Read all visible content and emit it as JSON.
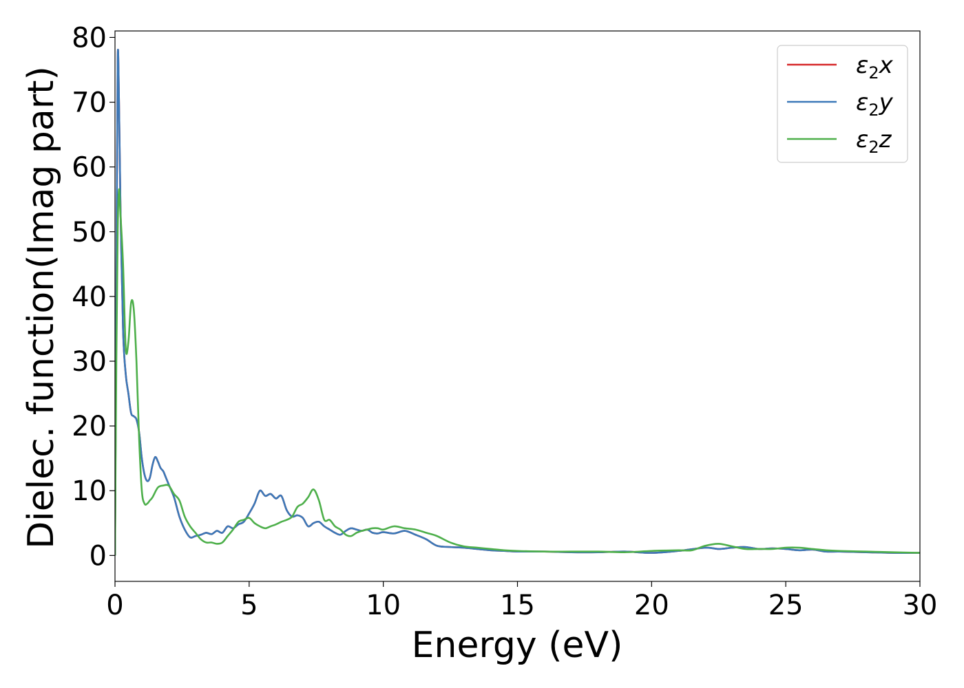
{
  "chart_data": {
    "type": "line",
    "title": "",
    "xlabel": "Energy (eV)",
    "ylabel": "Dielec. function(Imag part)",
    "xlim": [
      0,
      30
    ],
    "ylim": [
      -4,
      81
    ],
    "xticks": [
      0,
      5,
      10,
      15,
      20,
      25,
      30
    ],
    "xtick_labels": [
      "0",
      "5",
      "10",
      "15",
      "20",
      "25",
      "30"
    ],
    "yticks": [
      0,
      10,
      20,
      30,
      40,
      50,
      60,
      70,
      80
    ],
    "ytick_labels": [
      "0",
      "10",
      "20",
      "30",
      "40",
      "50",
      "60",
      "70",
      "80"
    ],
    "grid": false,
    "legend_position": "top-right",
    "series": [
      {
        "name": "ε₂x",
        "legend_base": "ε",
        "legend_sub": "2",
        "legend_var": "x",
        "color": "#d62728",
        "x": [
          0,
          0.05,
          0.1,
          0.15,
          0.2,
          0.3,
          0.4,
          0.5,
          0.6,
          0.7,
          0.8,
          0.9,
          1.0,
          1.1,
          1.2,
          1.3,
          1.4,
          1.5,
          1.6,
          1.7,
          1.8,
          1.9,
          2.0,
          2.2,
          2.4,
          2.6,
          2.8,
          3.0,
          3.2,
          3.4,
          3.6,
          3.8,
          4.0,
          4.2,
          4.4,
          4.6,
          4.8,
          5.0,
          5.2,
          5.4,
          5.6,
          5.8,
          6.0,
          6.2,
          6.4,
          6.6,
          6.8,
          7.0,
          7.2,
          7.4,
          7.6,
          7.8,
          8.0,
          8.2,
          8.4,
          8.6,
          8.8,
          9.0,
          9.2,
          9.4,
          9.6,
          9.8,
          10.0,
          10.4,
          10.8,
          11.2,
          11.6,
          12.0,
          12.5,
          13.0,
          13.5,
          14.0,
          14.5,
          15.0,
          16.0,
          17.0,
          18.0,
          19.0,
          20.0,
          21.0,
          22.0,
          22.5,
          23.0,
          23.5,
          24.0,
          24.5,
          25.0,
          25.5,
          26.0,
          26.5,
          27.0,
          28.0,
          29.0,
          30.0
        ],
        "y": [
          0,
          40,
          76.5,
          70,
          55,
          35,
          28,
          25,
          22,
          21.5,
          21,
          19,
          15,
          12.5,
          11.5,
          12,
          14,
          15.2,
          14.5,
          13.5,
          13,
          12,
          11,
          9,
          6,
          4,
          2.8,
          3.0,
          3.2,
          3.5,
          3.3,
          3.8,
          3.5,
          4.5,
          4.2,
          4.8,
          5.2,
          6.5,
          8,
          10,
          9.2,
          9.5,
          8.8,
          9.2,
          7,
          6,
          6.2,
          5.8,
          4.5,
          5,
          5.2,
          4.5,
          4,
          3.5,
          3.2,
          3.8,
          4.2,
          4,
          3.8,
          4.0,
          3.5,
          3.4,
          3.6,
          3.4,
          3.8,
          3.2,
          2.5,
          1.5,
          1.3,
          1.2,
          1.0,
          0.8,
          0.7,
          0.6,
          0.6,
          0.5,
          0.5,
          0.6,
          0.4,
          0.7,
          1.2,
          1.0,
          1.2,
          1.3,
          1.0,
          1.1,
          1.0,
          0.8,
          0.9,
          0.6,
          0.6,
          0.5,
          0.4,
          0.4
        ]
      },
      {
        "name": "ε₂y",
        "legend_base": "ε",
        "legend_sub": "2",
        "legend_var": "y",
        "color": "#3a78b8",
        "x": [
          0,
          0.05,
          0.1,
          0.15,
          0.2,
          0.3,
          0.4,
          0.5,
          0.6,
          0.7,
          0.8,
          0.9,
          1.0,
          1.1,
          1.2,
          1.3,
          1.4,
          1.5,
          1.6,
          1.7,
          1.8,
          1.9,
          2.0,
          2.2,
          2.4,
          2.6,
          2.8,
          3.0,
          3.2,
          3.4,
          3.6,
          3.8,
          4.0,
          4.2,
          4.4,
          4.6,
          4.8,
          5.0,
          5.2,
          5.4,
          5.6,
          5.8,
          6.0,
          6.2,
          6.4,
          6.6,
          6.8,
          7.0,
          7.2,
          7.4,
          7.6,
          7.8,
          8.0,
          8.2,
          8.4,
          8.6,
          8.8,
          9.0,
          9.2,
          9.4,
          9.6,
          9.8,
          10.0,
          10.4,
          10.8,
          11.2,
          11.6,
          12.0,
          12.5,
          13.0,
          13.5,
          14.0,
          14.5,
          15.0,
          16.0,
          17.0,
          18.0,
          19.0,
          20.0,
          21.0,
          22.0,
          22.5,
          23.0,
          23.5,
          24.0,
          24.5,
          25.0,
          25.5,
          26.0,
          26.5,
          27.0,
          28.0,
          29.0,
          30.0
        ],
        "y": [
          0,
          40,
          76.5,
          70,
          55,
          35,
          28,
          25,
          22,
          21.5,
          21,
          19,
          15,
          12.5,
          11.5,
          12,
          14,
          15.2,
          14.5,
          13.5,
          13,
          12,
          11,
          9,
          6,
          4,
          2.8,
          3.0,
          3.2,
          3.5,
          3.3,
          3.8,
          3.5,
          4.5,
          4.2,
          4.8,
          5.2,
          6.5,
          8,
          10,
          9.2,
          9.5,
          8.8,
          9.2,
          7,
          6,
          6.2,
          5.8,
          4.5,
          5,
          5.2,
          4.5,
          4,
          3.5,
          3.2,
          3.8,
          4.2,
          4,
          3.8,
          4.0,
          3.5,
          3.4,
          3.6,
          3.4,
          3.8,
          3.2,
          2.5,
          1.5,
          1.3,
          1.2,
          1.0,
          0.8,
          0.7,
          0.6,
          0.6,
          0.5,
          0.5,
          0.6,
          0.4,
          0.7,
          1.2,
          1.0,
          1.2,
          1.3,
          1.0,
          1.1,
          1.0,
          0.8,
          0.9,
          0.6,
          0.6,
          0.5,
          0.4,
          0.4
        ]
      },
      {
        "name": "ε₂z",
        "legend_base": "ε",
        "legend_sub": "2",
        "legend_var": "z",
        "color": "#4daf4a",
        "x": [
          0,
          0.05,
          0.1,
          0.15,
          0.2,
          0.3,
          0.4,
          0.5,
          0.6,
          0.7,
          0.8,
          0.9,
          1.0,
          1.1,
          1.2,
          1.3,
          1.4,
          1.6,
          1.8,
          2.0,
          2.2,
          2.4,
          2.6,
          2.8,
          3.0,
          3.2,
          3.4,
          3.6,
          3.8,
          4.0,
          4.2,
          4.4,
          4.6,
          4.8,
          5.0,
          5.2,
          5.4,
          5.6,
          5.8,
          6.0,
          6.2,
          6.4,
          6.6,
          6.8,
          7.0,
          7.2,
          7.4,
          7.6,
          7.8,
          8.0,
          8.2,
          8.4,
          8.6,
          8.8,
          9.0,
          9.2,
          9.4,
          9.6,
          9.8,
          10.0,
          10.4,
          10.8,
          11.2,
          11.6,
          12.0,
          12.5,
          13.0,
          13.5,
          14.0,
          14.5,
          15.0,
          16.0,
          17.0,
          18.0,
          19.0,
          20.0,
          21.0,
          21.5,
          22.0,
          22.5,
          23.0,
          23.5,
          24.0,
          24.5,
          25.0,
          25.5,
          26.0,
          26.5,
          27.0,
          28.0,
          29.0,
          30.0
        ],
        "y": [
          0,
          30,
          50,
          56.5,
          53,
          45,
          32,
          33,
          39,
          38,
          30,
          18,
          10,
          8,
          8,
          8.5,
          9,
          10.5,
          10.8,
          10.8,
          9.5,
          8.5,
          6,
          4.5,
          3.5,
          2.5,
          2,
          2,
          1.8,
          2,
          3,
          4,
          5.2,
          5.5,
          5.8,
          5,
          4.5,
          4.2,
          4.5,
          4.8,
          5.2,
          5.5,
          6,
          7.5,
          8,
          9,
          10.2,
          8.5,
          5.5,
          5.5,
          4.5,
          4,
          3.2,
          3,
          3.5,
          3.8,
          4,
          4.2,
          4.2,
          4,
          4.5,
          4.2,
          4.0,
          3.5,
          3.0,
          2.0,
          1.4,
          1.2,
          1.0,
          0.8,
          0.7,
          0.6,
          0.6,
          0.6,
          0.5,
          0.7,
          0.8,
          0.8,
          1.5,
          1.8,
          1.4,
          1.0,
          1.0,
          1.0,
          1.2,
          1.2,
          1.0,
          0.8,
          0.7,
          0.6,
          0.5,
          0.4
        ]
      }
    ]
  }
}
